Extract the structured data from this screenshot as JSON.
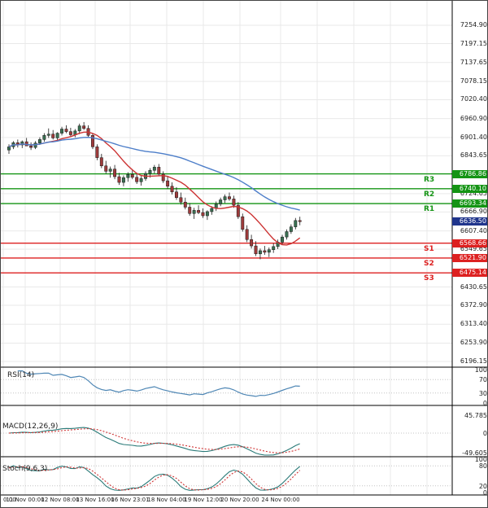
{
  "colors": {
    "grid": "#e9e9e9",
    "ref_dotted": "#c4c4c4",
    "axis_text": "#222222",
    "candle_up": "#3a7052",
    "candle_down": "#9e3b3b",
    "candle_stroke": "#1a1a1a",
    "ma_fast": "#cc3333",
    "ma_slow": "#4d7ec9",
    "resistance": "#149414",
    "support": "#dd2121",
    "current_badge": "#20358c",
    "rsi_line": "#4f87b5",
    "macd_line": "#2a7a78",
    "macd_signal": "#cf3333",
    "stoch_k": "#2a7a78",
    "stoch_d": "#cf3333",
    "panel_border": "#000000"
  },
  "price_axis": {
    "ticks": [
      "7254.90",
      "7197.15",
      "7137.65",
      "7078.15",
      "7020.40",
      "6960.90",
      "6901.40",
      "6843.65",
      "6724.65",
      "6666.90",
      "6607.40",
      "6549.65",
      "6430.65",
      "6372.90",
      "6313.40",
      "6253.90",
      "6196.15"
    ]
  },
  "levels": {
    "resistance": [
      {
        "label": "R3",
        "value": "6786.86"
      },
      {
        "label": "R2",
        "value": "6740.10"
      },
      {
        "label": "R1",
        "value": "6693.34"
      }
    ],
    "support": [
      {
        "label": "S1",
        "value": "6568.66"
      },
      {
        "label": "S2",
        "value": "6521.90"
      },
      {
        "label": "S3",
        "value": "6475.14"
      }
    ],
    "current_price": "6636.50"
  },
  "time_axis": {
    "labels": [
      "0:00",
      "11 Nov 00:00",
      "12 Nov 08:00",
      "13 Nov 16:00",
      "16 Nov 23:01",
      "18 Nov 04:00",
      "19 Nov 12:00",
      "20 Nov 20:00",
      "24 Nov 00:00"
    ]
  },
  "indicators": {
    "rsi": {
      "label": "RSI(14)",
      "ticks": [
        "100",
        "70",
        "30",
        "0"
      ]
    },
    "macd": {
      "label": "MACD(12,26,9)",
      "ticks": [
        "45.785",
        "0",
        "-49.605"
      ]
    },
    "stoch": {
      "label": "Stoch(9,6,3)",
      "ticks": [
        "100",
        "80",
        "20",
        "0"
      ]
    }
  },
  "chart_data": {
    "type": "candlestick",
    "ylim": [
      6196.15,
      7254.9
    ],
    "resistance_levels": [
      6786.86,
      6740.1,
      6693.34
    ],
    "support_levels": [
      6568.66,
      6521.9,
      6475.14
    ],
    "last_price": 6636.5,
    "sub_panels": [
      "RSI(14)",
      "MACD(12,26,9)",
      "Stoch(9,6,3)"
    ],
    "ohlc": [
      [
        6862,
        6880,
        6850,
        6872
      ],
      [
        6872,
        6890,
        6865,
        6885
      ],
      [
        6885,
        6895,
        6870,
        6878
      ],
      [
        6878,
        6892,
        6868,
        6888
      ],
      [
        6888,
        6900,
        6880,
        6875
      ],
      [
        6875,
        6886,
        6862,
        6870
      ],
      [
        6870,
        6890,
        6865,
        6884
      ],
      [
        6884,
        6902,
        6878,
        6895
      ],
      [
        6895,
        6915,
        6888,
        6908
      ],
      [
        6908,
        6930,
        6900,
        6912
      ],
      [
        6912,
        6925,
        6895,
        6900
      ],
      [
        6900,
        6918,
        6892,
        6915
      ],
      [
        6915,
        6935,
        6908,
        6928
      ],
      [
        6928,
        6940,
        6915,
        6920
      ],
      [
        6920,
        6932,
        6905,
        6910
      ],
      [
        6910,
        6928,
        6902,
        6922
      ],
      [
        6922,
        6945,
        6912,
        6938
      ],
      [
        6938,
        6950,
        6925,
        6930
      ],
      [
        6930,
        6940,
        6900,
        6908
      ],
      [
        6908,
        6915,
        6865,
        6872
      ],
      [
        6872,
        6880,
        6830,
        6838
      ],
      [
        6838,
        6850,
        6805,
        6812
      ],
      [
        6812,
        6828,
        6788,
        6795
      ],
      [
        6795,
        6810,
        6775,
        6802
      ],
      [
        6802,
        6815,
        6770,
        6778
      ],
      [
        6778,
        6790,
        6752,
        6760
      ],
      [
        6760,
        6782,
        6748,
        6775
      ],
      [
        6775,
        6792,
        6762,
        6785
      ],
      [
        6785,
        6800,
        6770,
        6776
      ],
      [
        6776,
        6788,
        6755,
        6762
      ],
      [
        6762,
        6780,
        6750,
        6772
      ],
      [
        6772,
        6795,
        6765,
        6788
      ],
      [
        6788,
        6805,
        6775,
        6798
      ],
      [
        6798,
        6815,
        6788,
        6808
      ],
      [
        6808,
        6818,
        6780,
        6786
      ],
      [
        6786,
        6795,
        6758,
        6765
      ],
      [
        6765,
        6778,
        6740,
        6748
      ],
      [
        6748,
        6760,
        6722,
        6730
      ],
      [
        6730,
        6745,
        6705,
        6712
      ],
      [
        6712,
        6728,
        6690,
        6698
      ],
      [
        6698,
        6712,
        6675,
        6682
      ],
      [
        6682,
        6695,
        6655,
        6662
      ],
      [
        6662,
        6680,
        6645,
        6672
      ],
      [
        6672,
        6688,
        6660,
        6665
      ],
      [
        6665,
        6678,
        6648,
        6655
      ],
      [
        6655,
        6672,
        6642,
        6668
      ],
      [
        6668,
        6685,
        6658,
        6678
      ],
      [
        6678,
        6700,
        6670,
        6692
      ],
      [
        6692,
        6712,
        6685,
        6705
      ],
      [
        6705,
        6722,
        6695,
        6715
      ],
      [
        6715,
        6728,
        6702,
        6708
      ],
      [
        6708,
        6718,
        6680,
        6688
      ],
      [
        6688,
        6698,
        6645,
        6652
      ],
      [
        6652,
        6662,
        6605,
        6612
      ],
      [
        6612,
        6625,
        6572,
        6580
      ],
      [
        6580,
        6595,
        6552,
        6560
      ],
      [
        6560,
        6575,
        6528,
        6535
      ],
      [
        6535,
        6552,
        6518,
        6545
      ],
      [
        6545,
        6560,
        6532,
        6540
      ],
      [
        6540,
        6555,
        6525,
        6548
      ],
      [
        6548,
        6568,
        6538,
        6558
      ],
      [
        6558,
        6580,
        6550,
        6572
      ],
      [
        6572,
        6595,
        6565,
        6588
      ],
      [
        6588,
        6612,
        6580,
        6605
      ],
      [
        6605,
        6628,
        6598,
        6620
      ],
      [
        6620,
        6648,
        6612,
        6640
      ],
      [
        6640,
        6652,
        6625,
        6636.5
      ]
    ]
  }
}
